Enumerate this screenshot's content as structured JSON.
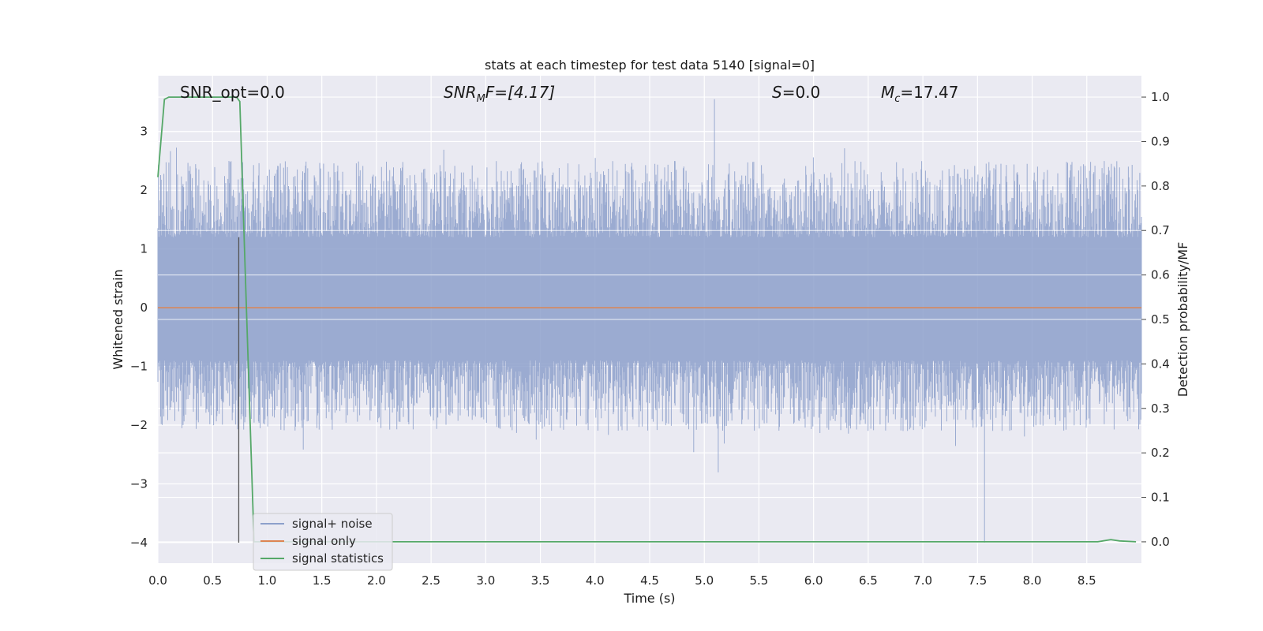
{
  "chart_data": {
    "type": "line",
    "title": "stats at each timestep for test data 5140 [signal=0]",
    "xlabel": "Time (s)",
    "ylabel_left": "Whitened strain",
    "ylabel_right": "Detection probability/MF",
    "xlim": [
      0.0,
      9.0
    ],
    "ylim_left": [
      -4.35,
      3.95
    ],
    "ylim_right": [
      -0.048,
      1.048
    ],
    "x_ticks": [
      "0.0",
      "0.5",
      "1.0",
      "1.5",
      "2.0",
      "2.5",
      "3.0",
      "3.5",
      "4.0",
      "4.5",
      "5.0",
      "5.5",
      "6.0",
      "6.5",
      "7.0",
      "7.5",
      "8.0",
      "8.5"
    ],
    "y_ticks_left": [
      "−4",
      "−3",
      "−2",
      "−1",
      "0",
      "1",
      "2",
      "3"
    ],
    "y_ticks_right": [
      "0.0",
      "0.1",
      "0.2",
      "0.3",
      "0.4",
      "0.5",
      "0.6",
      "0.7",
      "0.8",
      "0.9",
      "1.0"
    ],
    "grid": true,
    "legend_position": "lower-left",
    "annotations": {
      "snr_opt": "SNR_opt=0.0",
      "snr_mf_base": "SNR",
      "snr_mf_sub": "M",
      "snr_mf_rest": "F=[4.17]",
      "s_label": "S",
      "s_rest": "=0.0",
      "mc_base": "M",
      "mc_sub": "c",
      "mc_rest": "=17.47"
    },
    "vline_x": 0.74,
    "series": [
      {
        "name": "signal+ noise",
        "color": "#8da0cb",
        "kind": "noise",
        "envelope_typical": [
          -1.7,
          2.2
        ],
        "extremes": [
          -4.0,
          3.55
        ]
      },
      {
        "name": "signal only",
        "color": "#dd8452",
        "kind": "flat",
        "value": 0.0
      },
      {
        "name": "signal statistics",
        "color": "#55a868",
        "kind": "line",
        "x": [
          0.0,
          0.06,
          0.1,
          0.2,
          0.5,
          0.72,
          0.75,
          0.8,
          0.88,
          1.0,
          2.0,
          4.0,
          6.0,
          8.0,
          8.6,
          8.72,
          8.8,
          8.95
        ],
        "y": [
          0.82,
          0.995,
          1.0,
          1.0,
          1.0,
          1.0,
          0.99,
          0.6,
          0.0,
          0.0,
          0.0,
          0.0,
          0.0,
          0.0,
          0.0,
          0.005,
          0.002,
          0.0
        ]
      }
    ]
  }
}
